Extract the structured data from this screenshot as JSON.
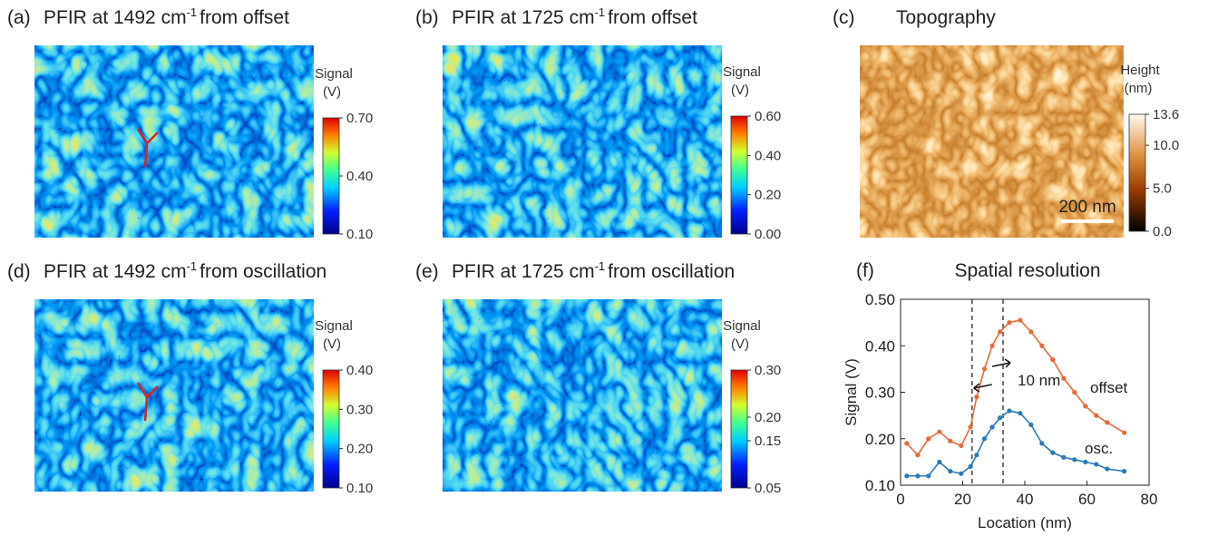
{
  "image_panels": [
    {
      "label": "(a)",
      "title": "PFIR at 1492 cm",
      "title_sup": "-1",
      "title_end": "from offset",
      "colorbar_label": [
        "Signal",
        "(V)"
      ],
      "clim": [
        0.1,
        0.7
      ],
      "cticks": [
        {
          "value": 0.7,
          "label": "0.70"
        },
        {
          "value": 0.4,
          "label": "0.40"
        },
        {
          "value": 0.1,
          "label": "0.10"
        }
      ],
      "colormap": "jet"
    },
    {
      "label": "(b)",
      "title": "PFIR at 1725 cm",
      "title_sup": "-1",
      "title_end": "from offset",
      "colorbar_label": [
        "Signal",
        "(V)"
      ],
      "clim": [
        0,
        0.6
      ],
      "cticks": [
        {
          "value": 0.6,
          "label": "0.60"
        },
        {
          "value": 0.4,
          "label": "0.40"
        },
        {
          "value": 0.2,
          "label": "0.20"
        },
        {
          "value": 0,
          "label": "0.00"
        }
      ],
      "colormap": "jet"
    },
    {
      "label": "(c)",
      "title": "Topography",
      "colorbar_label": [
        "Height",
        "(nm)"
      ],
      "clim": [
        0,
        13.6
      ],
      "cticks": [
        13.6,
        {
          "value": 10,
          "label": "10.0"
        },
        {
          "value": 5,
          "label": "5.0"
        },
        {
          "value": 0,
          "label": "0.0"
        }
      ],
      "colormap": "afmhot",
      "scale_bar": "200 nm"
    },
    {
      "label": "(d)",
      "title": "PFIR at 1492 cm",
      "title_sup": "-1",
      "title_end": "from oscillation",
      "colorbar_label": [
        "Signal",
        "(V)"
      ],
      "clim": [
        0.1,
        0.4
      ],
      "cticks": [
        {
          "value": 0.4,
          "label": "0.40"
        },
        {
          "value": 0.3,
          "label": "0.30"
        },
        {
          "value": 0.2,
          "label": "0.20"
        },
        {
          "value": 0.1,
          "label": "0.10"
        }
      ],
      "colormap": "jet"
    },
    {
      "label": "(e)",
      "title": "PFIR at 1725 cm",
      "title_sup": "-1",
      "title_end": "from oscillation",
      "colorbar_label": [
        "Signal",
        "(V)"
      ],
      "clim": [
        0.05,
        0.3
      ],
      "cticks": [
        {
          "value": 0.3,
          "label": "0.30"
        },
        {
          "value": 0.2,
          "label": "0.20"
        },
        {
          "value": 0.15,
          "label": "0.15"
        },
        {
          "value": 0.05,
          "label": "0.05"
        }
      ],
      "colormap": "jet"
    }
  ],
  "chart_data": {
    "type": "line",
    "label": "(f)",
    "title": "Spatial resolution",
    "x_label": "Location (nm)",
    "y_label": "Signal (V)",
    "x": [
      2,
      5.5,
      9,
      12.5,
      16,
      19.5,
      22.5,
      24.5,
      27,
      29.5,
      32,
      35,
      38.5,
      42,
      45.5,
      49,
      52.5,
      56,
      59.5,
      63,
      66.5,
      72
    ],
    "series": [
      {
        "name": "offset",
        "color": "#e8693a",
        "values": [
          0.19,
          0.165,
          0.2,
          0.215,
          0.195,
          0.185,
          0.225,
          0.29,
          0.35,
          0.4,
          0.43,
          0.45,
          0.455,
          0.43,
          0.4,
          0.37,
          0.33,
          0.3,
          0.27,
          0.25,
          0.235,
          0.213
        ]
      },
      {
        "name": "osc.",
        "color": "#2a7ab8",
        "values": [
          0.12,
          0.12,
          0.12,
          0.15,
          0.13,
          0.125,
          0.14,
          0.165,
          0.2,
          0.225,
          0.245,
          0.26,
          0.255,
          0.23,
          0.19,
          0.17,
          0.16,
          0.155,
          0.15,
          0.145,
          0.135,
          0.13
        ]
      }
    ],
    "xlim": [
      0,
      80
    ],
    "xticks": [
      0,
      20,
      40,
      60,
      80
    ],
    "ylim": [
      0.1,
      0.5
    ],
    "yticks": [
      {
        "value": 0.1,
        "label": "0.10"
      },
      {
        "value": 0.2,
        "label": "0.20"
      },
      {
        "value": 0.3,
        "label": "0.30"
      },
      {
        "value": 0.4,
        "label": "0.40"
      },
      {
        "value": 0.5,
        "label": "0.50"
      }
    ],
    "vlines": [
      23,
      33
    ],
    "annotation": "10 nm"
  }
}
